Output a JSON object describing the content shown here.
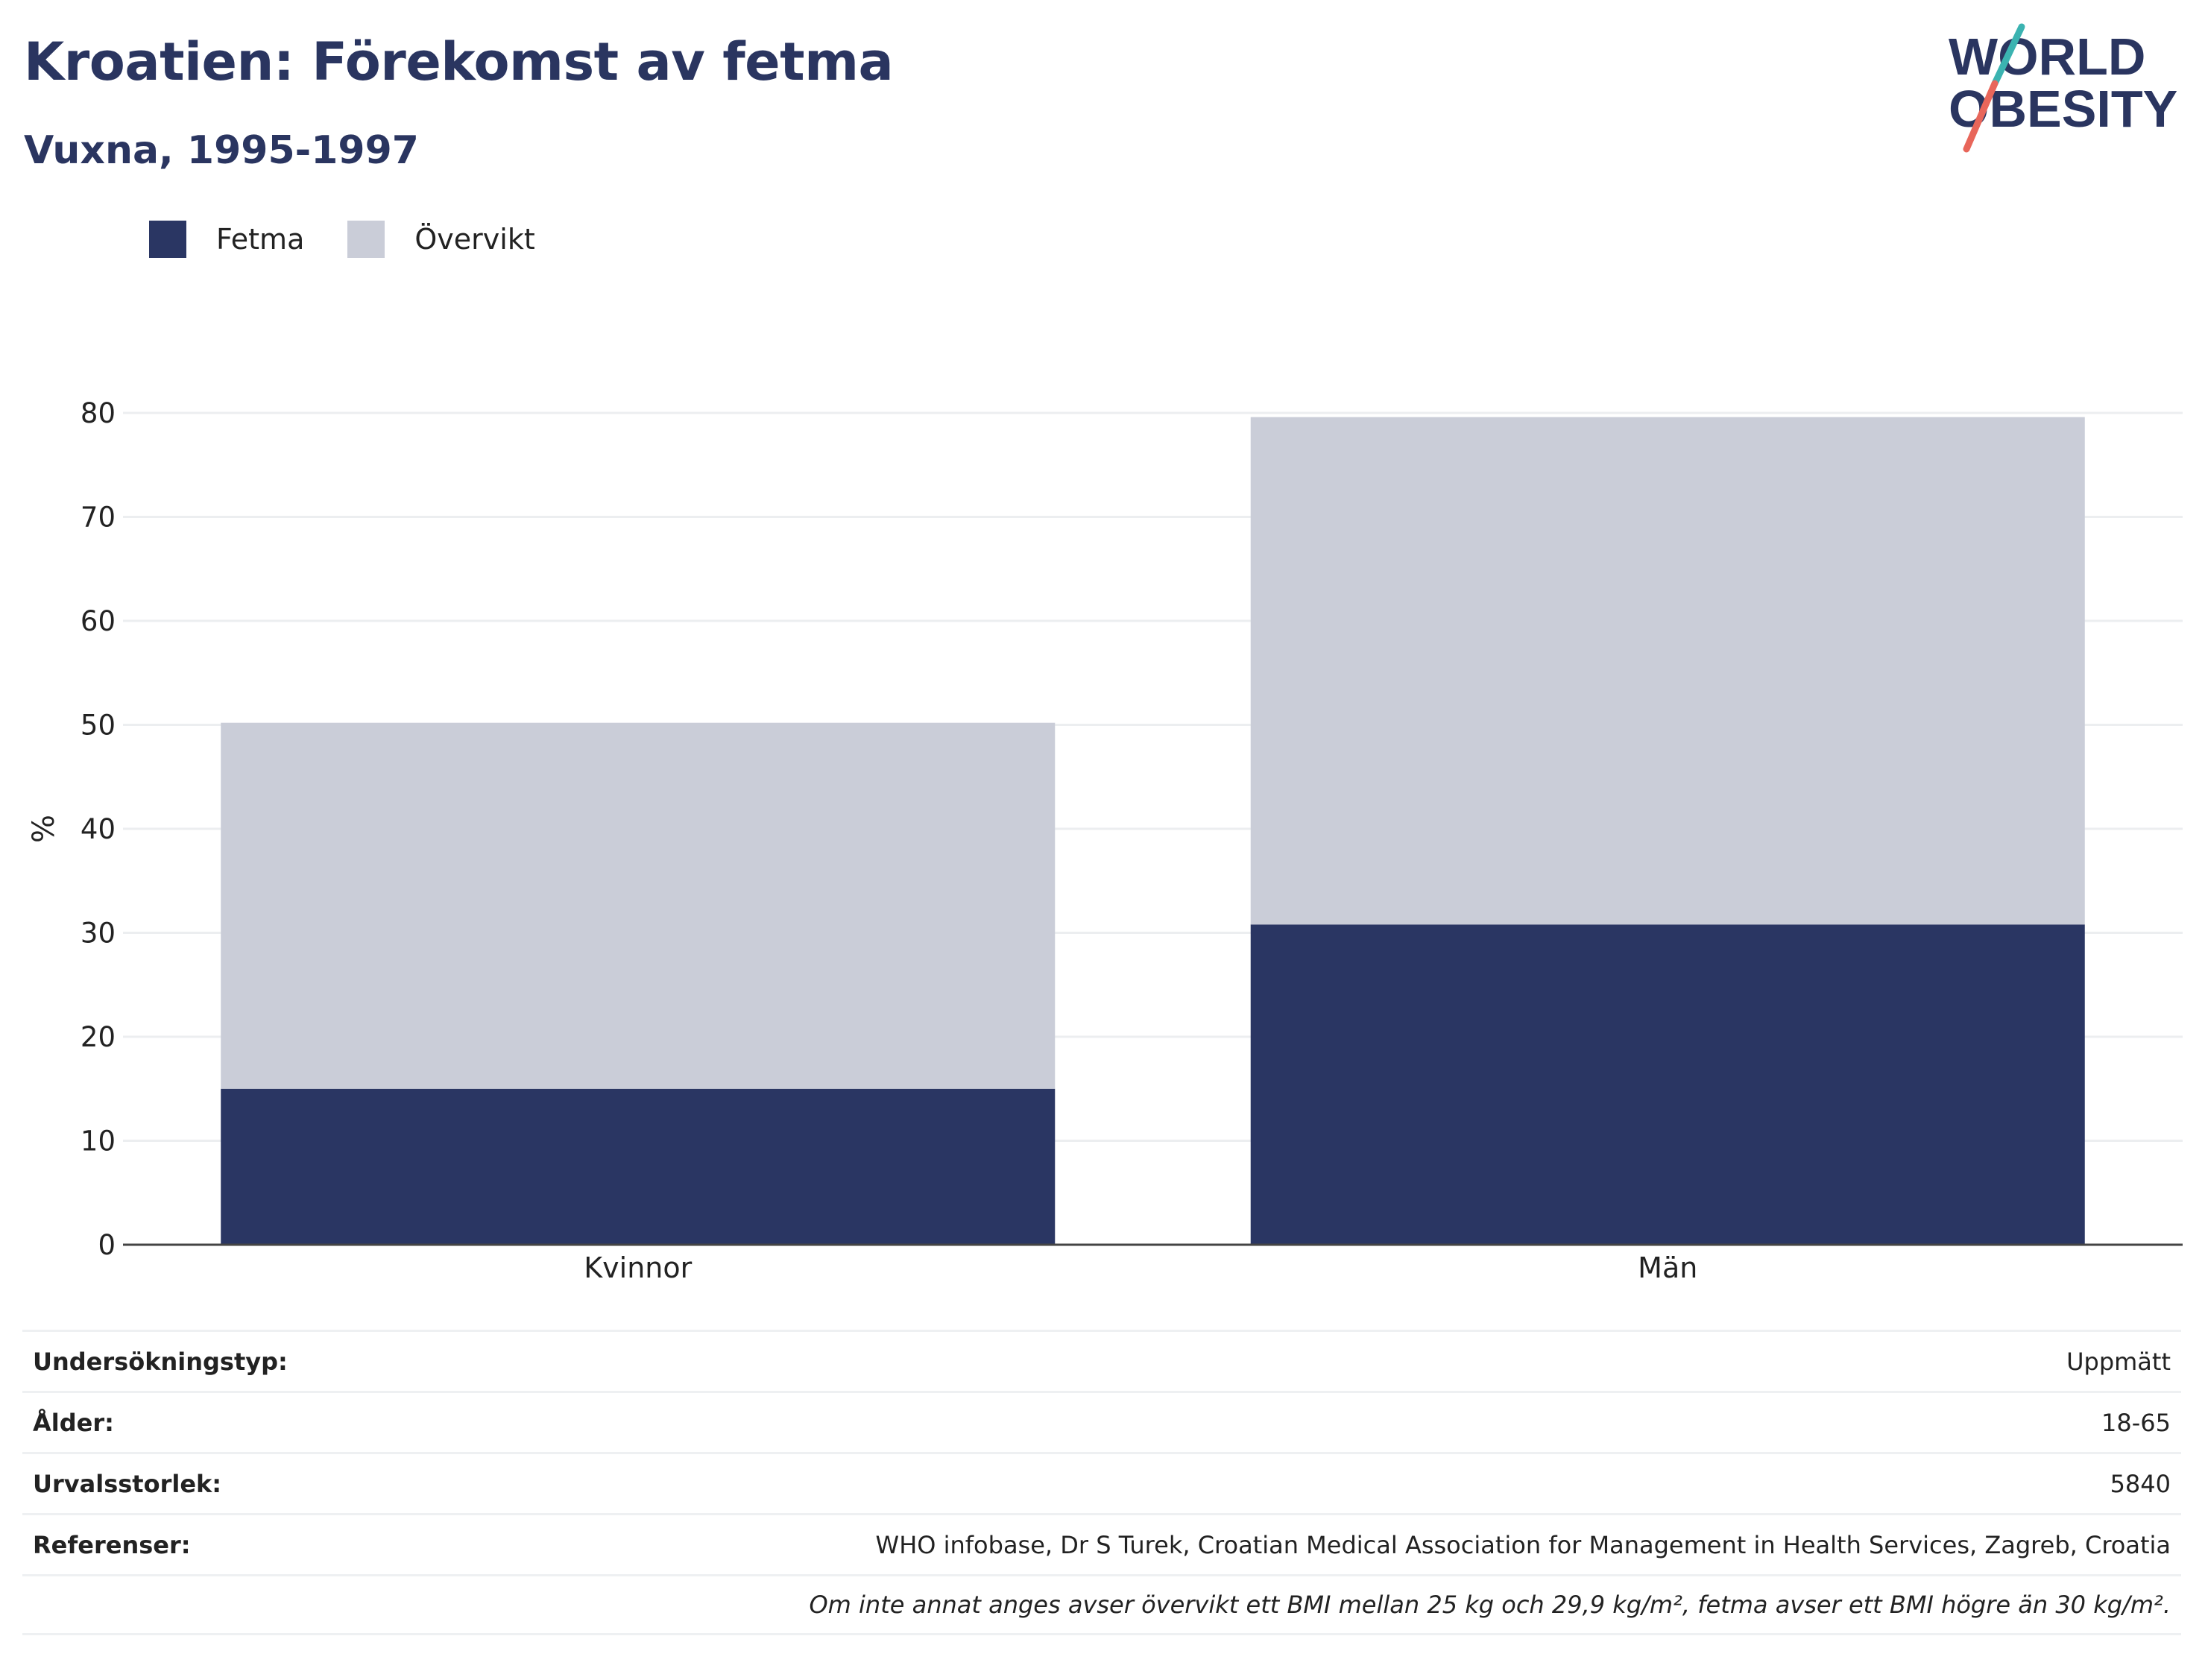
{
  "header": {
    "title": "Kroatien: Förekomst av fetma",
    "subtitle": "Vuxna, 1995-1997"
  },
  "logo": {
    "line1": "WORLD",
    "line2": "OBESITY"
  },
  "colors": {
    "fetma": "#2a3663",
    "overvikt": "#cacdd8",
    "title": "#2a3560",
    "accent_teal": "#3bb3b1",
    "accent_coral": "#e8665a"
  },
  "chart_data": {
    "type": "bar",
    "stacked": true,
    "categories": [
      "Kvinnor",
      "Män"
    ],
    "series": [
      {
        "name": "Fetma",
        "values": [
          15.0,
          30.8
        ]
      },
      {
        "name": "Övervikt",
        "values": [
          35.2,
          48.8
        ]
      }
    ],
    "ylabel": "%",
    "xlabel": "",
    "ylim": [
      0,
      80
    ],
    "yticks": [
      0,
      10,
      20,
      30,
      40,
      50,
      60,
      70,
      80
    ],
    "grid": true,
    "legend": "top-left"
  },
  "info": {
    "rows": [
      {
        "label": "Undersökningstyp:",
        "value": "Uppmätt"
      },
      {
        "label": "Ålder:",
        "value": "18-65"
      },
      {
        "label": "Urvalsstorlek:",
        "value": "5840"
      },
      {
        "label": "Referenser:",
        "value": "WHO infobase, Dr S Turek, Croatian Medical Association for Management in Health Services, Zagreb, Croatia"
      }
    ],
    "note": "Om inte annat anges avser övervikt ett BMI mellan 25 kg och 29,9 kg/m², fetma avser ett BMI högre än 30 kg/m²."
  }
}
